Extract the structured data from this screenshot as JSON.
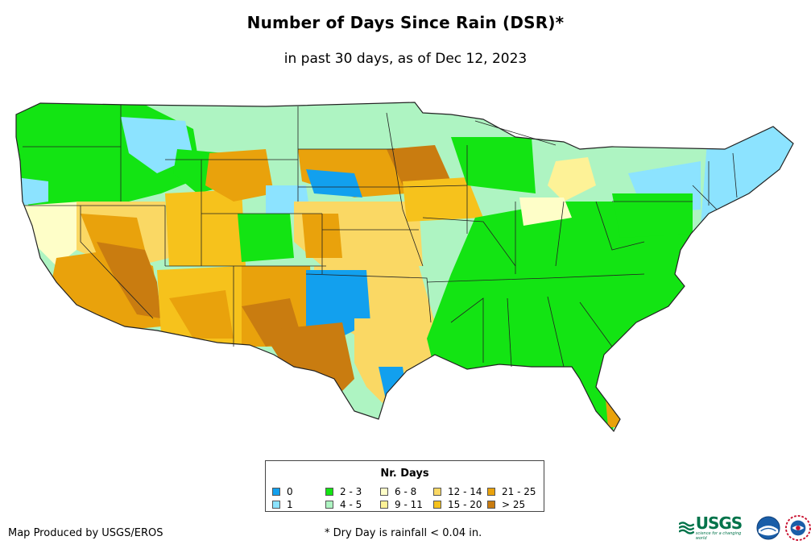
{
  "header": {
    "title": "Number of Days Since Rain (DSR)*",
    "subtitle": "in past 30 days, as of Dec 12, 2023"
  },
  "legend": {
    "title": "Nr. Days",
    "items": [
      {
        "label": "0",
        "color": "#12a0ee"
      },
      {
        "label": "1",
        "color": "#8ce3ff"
      },
      {
        "label": "2 - 3",
        "color": "#13e413"
      },
      {
        "label": "4 - 5",
        "color": "#aef4c2"
      },
      {
        "label": "6 - 8",
        "color": "#fefec8"
      },
      {
        "label": "9 - 11",
        "color": "#fdf297"
      },
      {
        "label": "12 - 14",
        "color": "#fad864"
      },
      {
        "label": "15 - 20",
        "color": "#f6c21c"
      },
      {
        "label": "21 - 25",
        "color": "#e9a20c"
      },
      {
        "label": "> 25",
        "color": "#c97c10"
      }
    ]
  },
  "footer": {
    "producer": "Map Produced by USGS/EROS",
    "note": "* Dry Day is rainfall < 0.04 in."
  },
  "logos": {
    "usgs_text": "USGS",
    "usgs_tagline": "science for a changing world"
  }
}
